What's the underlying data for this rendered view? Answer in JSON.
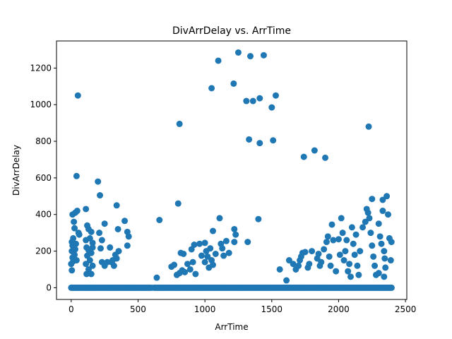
{
  "chart_data": {
    "type": "scatter",
    "title": "DivArrDelay vs. ArrTime",
    "xlabel": "ArrTime",
    "ylabel": "DivArrDelay",
    "xlim": [
      -110,
      2510
    ],
    "ylim": [
      -64,
      1348
    ],
    "xticks": [
      0,
      500,
      1000,
      1500,
      2000,
      2500
    ],
    "yticks": [
      0,
      200,
      400,
      600,
      800,
      1000,
      1200
    ],
    "grid": false,
    "legend": "none",
    "marker_color": "#1f77b4",
    "points": [
      [
        50,
        1050
      ],
      [
        40,
        610
      ],
      [
        10,
        400
      ],
      [
        30,
        410
      ],
      [
        45,
        420
      ],
      [
        20,
        360
      ],
      [
        25,
        325
      ],
      [
        5,
        250
      ],
      [
        15,
        270
      ],
      [
        10,
        230
      ],
      [
        35,
        240
      ],
      [
        5,
        200
      ],
      [
        10,
        165
      ],
      [
        25,
        180
      ],
      [
        0,
        130
      ],
      [
        5,
        95
      ],
      [
        15,
        145
      ],
      [
        40,
        150
      ],
      [
        60,
        290
      ],
      [
        55,
        300
      ],
      [
        30,
        210
      ],
      [
        110,
        430
      ],
      [
        120,
        340
      ],
      [
        130,
        320
      ],
      [
        150,
        305
      ],
      [
        110,
        260
      ],
      [
        140,
        270
      ],
      [
        160,
        245
      ],
      [
        115,
        220
      ],
      [
        130,
        205
      ],
      [
        150,
        190
      ],
      [
        160,
        220
      ],
      [
        120,
        175
      ],
      [
        140,
        150
      ],
      [
        110,
        130
      ],
      [
        130,
        100
      ],
      [
        115,
        75
      ],
      [
        150,
        75
      ],
      [
        160,
        120
      ],
      [
        200,
        580
      ],
      [
        215,
        505
      ],
      [
        210,
        300
      ],
      [
        230,
        260
      ],
      [
        220,
        215
      ],
      [
        250,
        350
      ],
      [
        230,
        140
      ],
      [
        250,
        120
      ],
      [
        270,
        140
      ],
      [
        290,
        220
      ],
      [
        300,
        140
      ],
      [
        320,
        120
      ],
      [
        340,
        450
      ],
      [
        350,
        320
      ],
      [
        355,
        200
      ],
      [
        340,
        160
      ],
      [
        400,
        365
      ],
      [
        420,
        305
      ],
      [
        430,
        280
      ],
      [
        420,
        230
      ],
      [
        330,
        180
      ],
      [
        310,
        150
      ],
      [
        640,
        55
      ],
      [
        660,
        370
      ],
      [
        750,
        115
      ],
      [
        770,
        125
      ],
      [
        800,
        460
      ],
      [
        810,
        895
      ],
      [
        820,
        190
      ],
      [
        840,
        185
      ],
      [
        830,
        95
      ],
      [
        810,
        80
      ],
      [
        790,
        70
      ],
      [
        850,
        85
      ],
      [
        870,
        130
      ],
      [
        900,
        210
      ],
      [
        910,
        140
      ],
      [
        890,
        100
      ],
      [
        920,
        235
      ],
      [
        930,
        75
      ],
      [
        960,
        240
      ],
      [
        975,
        175
      ],
      [
        1000,
        245
      ],
      [
        1010,
        200
      ],
      [
        1020,
        170
      ],
      [
        1000,
        140
      ],
      [
        1030,
        110
      ],
      [
        1050,
        1090
      ],
      [
        1060,
        310
      ],
      [
        1040,
        215
      ],
      [
        1050,
        150
      ],
      [
        1060,
        125
      ],
      [
        1080,
        185
      ],
      [
        1100,
        1240
      ],
      [
        1110,
        380
      ],
      [
        1120,
        240
      ],
      [
        1130,
        215
      ],
      [
        1140,
        175
      ],
      [
        1160,
        255
      ],
      [
        1180,
        190
      ],
      [
        1220,
        320
      ],
      [
        1230,
        290
      ],
      [
        1220,
        250
      ],
      [
        1215,
        1115
      ],
      [
        1250,
        1285
      ],
      [
        1310,
        1020
      ],
      [
        1320,
        250
      ],
      [
        1330,
        810
      ],
      [
        1340,
        1265
      ],
      [
        1360,
        1020
      ],
      [
        1400,
        375
      ],
      [
        1410,
        1035
      ],
      [
        1410,
        790
      ],
      [
        1440,
        1270
      ],
      [
        1500,
        985
      ],
      [
        1510,
        805
      ],
      [
        1530,
        1050
      ],
      [
        1560,
        100
      ],
      [
        1610,
        40
      ],
      [
        1630,
        150
      ],
      [
        1660,
        130
      ],
      [
        1680,
        100
      ],
      [
        1700,
        120
      ],
      [
        1710,
        150
      ],
      [
        1720,
        170
      ],
      [
        1730,
        190
      ],
      [
        1740,
        715
      ],
      [
        1750,
        195
      ],
      [
        1770,
        110
      ],
      [
        1780,
        130
      ],
      [
        1800,
        200
      ],
      [
        1820,
        750
      ],
      [
        1840,
        160
      ],
      [
        1850,
        185
      ],
      [
        1860,
        120
      ],
      [
        1870,
        140
      ],
      [
        1890,
        210
      ],
      [
        1900,
        710
      ],
      [
        1910,
        250
      ],
      [
        1920,
        280
      ],
      [
        1930,
        170
      ],
      [
        1940,
        120
      ],
      [
        1950,
        345
      ],
      [
        1960,
        260
      ],
      [
        1980,
        90
      ],
      [
        2000,
        265
      ],
      [
        2010,
        180
      ],
      [
        2020,
        380
      ],
      [
        2030,
        300
      ],
      [
        2040,
        150
      ],
      [
        2050,
        200
      ],
      [
        2060,
        260
      ],
      [
        2070,
        90
      ],
      [
        2080,
        130
      ],
      [
        2090,
        60
      ],
      [
        2100,
        330
      ],
      [
        2110,
        240
      ],
      [
        2120,
        180
      ],
      [
        2130,
        290
      ],
      [
        2140,
        120
      ],
      [
        2150,
        70
      ],
      [
        2160,
        200
      ],
      [
        2180,
        330
      ],
      [
        2200,
        360
      ],
      [
        2210,
        430
      ],
      [
        2220,
        410
      ],
      [
        2225,
        880
      ],
      [
        2230,
        380
      ],
      [
        2240,
        300
      ],
      [
        2250,
        230
      ],
      [
        2250,
        485
      ],
      [
        2260,
        170
      ],
      [
        2270,
        120
      ],
      [
        2280,
        70
      ],
      [
        2300,
        350
      ],
      [
        2310,
        280
      ],
      [
        2320,
        240
      ],
      [
        2330,
        420
      ],
      [
        2330,
        480
      ],
      [
        2340,
        200
      ],
      [
        2345,
        160
      ],
      [
        2350,
        110
      ],
      [
        2360,
        500
      ],
      [
        2370,
        400
      ],
      [
        2380,
        270
      ],
      [
        2390,
        150
      ],
      [
        2395,
        250
      ],
      [
        2340,
        60
      ],
      [
        2300,
        80
      ]
    ],
    "baseline_y": 0,
    "baseline_ranges": [
      [
        0,
        600
      ],
      [
        620,
        2400
      ]
    ]
  }
}
